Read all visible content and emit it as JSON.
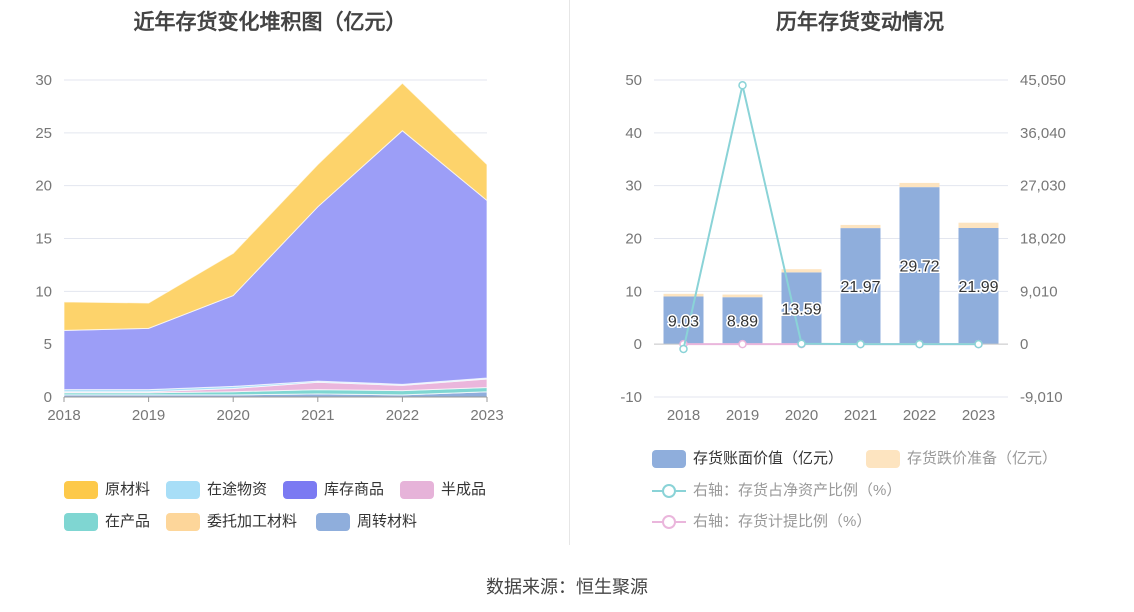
{
  "left_chart": {
    "title": "近年存货变化堆积图（亿元）"
  },
  "right_chart": {
    "title": "历年存货变动情况"
  },
  "source": "数据来源：恒生聚源",
  "colors": {
    "原材料": "#fdd36b",
    "在途物资": "#a8def7",
    "库存商品": "#8d8cf6",
    "半成品": "#eab6dc",
    "在产品": "#7fd6d2",
    "委托加工材料": "#fdd69a",
    "周转材料": "#8faedc",
    "存货账面价值": "#8faedc",
    "存货跌价准备": "#fde4c0",
    "存货占净资产比例": "#8ad3d7",
    "存货计提比例": "#eab6dc"
  },
  "chart_data": [
    {
      "type": "area",
      "stacked": true,
      "title": "近年存货变化堆积图（亿元）",
      "categories": [
        "2018",
        "2019",
        "2020",
        "2021",
        "2022",
        "2023"
      ],
      "ylim": [
        0,
        30
      ],
      "yticks": [
        "0",
        "5",
        "10",
        "15",
        "20",
        "25",
        "30"
      ],
      "grid": true,
      "legend_position": "bottom",
      "series": [
        {
          "name": "周转材料",
          "values": [
            0.2,
            0.2,
            0.2,
            0.3,
            0.2,
            0.5
          ]
        },
        {
          "name": "委托加工材料",
          "values": [
            0.0,
            0.0,
            0.0,
            0.0,
            0.0,
            0.0
          ]
        },
        {
          "name": "在产品",
          "values": [
            0.2,
            0.2,
            0.3,
            0.4,
            0.4,
            0.4
          ]
        },
        {
          "name": "半成品",
          "values": [
            0.1,
            0.1,
            0.3,
            0.7,
            0.5,
            0.8
          ]
        },
        {
          "name": "在途物资",
          "values": [
            0.2,
            0.2,
            0.2,
            0.1,
            0.1,
            0.1
          ]
        },
        {
          "name": "库存商品",
          "values": [
            5.6,
            5.8,
            8.6,
            16.5,
            24.0,
            16.8
          ]
        },
        {
          "name": "原材料",
          "values": [
            2.7,
            2.4,
            4.0,
            4.0,
            4.5,
            3.4
          ]
        }
      ],
      "legend_order": [
        "原材料",
        "在途物资",
        "库存商品",
        "半成品",
        "在产品",
        "委托加工材料",
        "周转材料"
      ]
    },
    {
      "type": "bar",
      "stacked": true,
      "title": "历年存货变动情况",
      "categories": [
        "2018",
        "2019",
        "2020",
        "2021",
        "2022",
        "2023"
      ],
      "ylim": [
        -10,
        50
      ],
      "yticks": [
        "-10",
        "0",
        "10",
        "20",
        "30",
        "40",
        "50"
      ],
      "y2lim": [
        -9010,
        45050
      ],
      "y2ticks": [
        "-9,010",
        "0",
        "9,010",
        "18,020",
        "27,030",
        "36,040",
        "45,050"
      ],
      "grid": true,
      "legend_position": "bottom",
      "series": [
        {
          "name": "存货账面价值（亿元）",
          "kind": "bar",
          "values": [
            9.03,
            8.89,
            13.59,
            21.97,
            29.72,
            21.99
          ],
          "labels": [
            "9.03",
            "8.89",
            "13.59",
            "21.97",
            "29.72",
            "21.99"
          ]
        },
        {
          "name": "存货跌价准备（亿元）",
          "kind": "bar",
          "values": [
            0.5,
            0.5,
            0.6,
            0.6,
            0.8,
            1.0
          ]
        },
        {
          "name": "右轴：存货占净资产比例（%）",
          "kind": "line",
          "axis": "right",
          "values": [
            -820,
            44150,
            80,
            0,
            0,
            0
          ]
        },
        {
          "name": "右轴：存货计提比例（%）",
          "kind": "line",
          "axis": "right",
          "values": [
            0,
            0,
            0,
            0,
            0,
            0
          ]
        }
      ]
    }
  ]
}
